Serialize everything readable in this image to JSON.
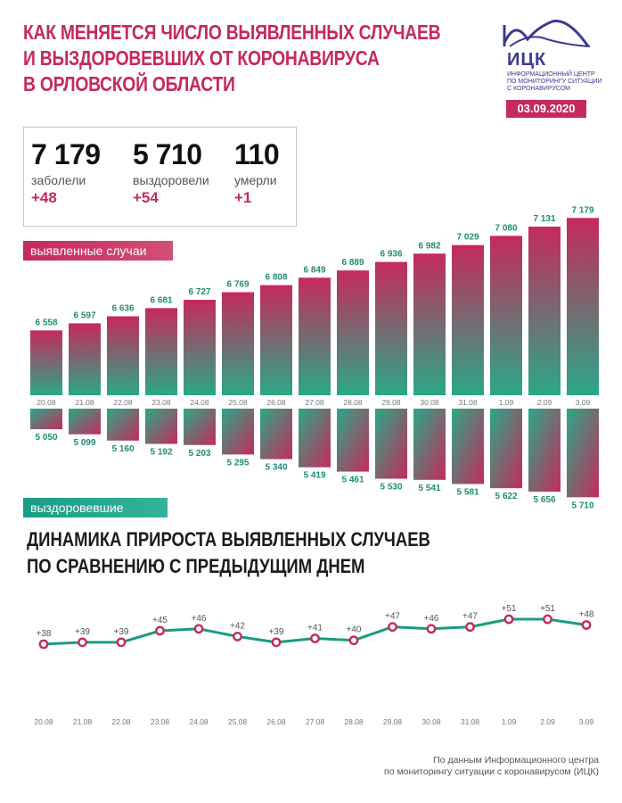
{
  "header": {
    "title_lines": [
      "КАК МЕНЯЕТСЯ ЧИСЛО ВЫЯВЛЕННЫХ СЛУЧАЕВ",
      "И ВЫЗДОРОВЕВШИХ ОТ КОРОНАВИРУСА",
      "В ОРЛОВСКОЙ ОБЛАСТИ"
    ]
  },
  "logo": {
    "abbr": "ИЦК",
    "sub_lines": [
      "ИНФОРМАЦИОННЫЙ ЦЕНТР",
      "ПО МОНИТОРИНГУ СИТУАЦИИ",
      "С КОРОНАВИРУСОМ"
    ],
    "date": "03.09.2020"
  },
  "summary": {
    "cases": {
      "value": "7 179",
      "label": "заболели",
      "delta": "+48"
    },
    "recovered": {
      "value": "5 710",
      "label": "выздоровели",
      "delta": "+54"
    },
    "deaths": {
      "value": "110",
      "label": "умерли",
      "delta": "+1"
    }
  },
  "labels": {
    "cases_pill": "выявленные случаи",
    "recovered_pill": "выздоровевшие"
  },
  "subtitle_lines": [
    "ДИНАМИКА ПРИРОСТА ВЫЯВЛЕННЫХ СЛУЧАЕВ",
    "ПО СРАВНЕНИЮ С ПРЕДЫДУЩИМ ДНЕМ"
  ],
  "source_lines": [
    "По данным Информационного центра",
    "по мониторингу ситуации с коронавирусом (ИЦК)"
  ],
  "colors": {
    "accent": "#c52a5c",
    "green": "#1a9c84",
    "label_green": "#1f8c75"
  },
  "chart_data": [
    {
      "type": "bar",
      "categories": [
        "20.08",
        "21.08",
        "22.08",
        "23.08",
        "24.08",
        "25.08",
        "26.08",
        "27.08",
        "28.08",
        "29.08",
        "30.08",
        "31.08",
        "1.09",
        "2.09",
        "3.09"
      ],
      "series": [
        {
          "name": "выявленные случаи",
          "values": [
            6558,
            6597,
            6636,
            6681,
            6727,
            6769,
            6808,
            6849,
            6889,
            6936,
            6982,
            7029,
            7080,
            7131,
            7179
          ],
          "labels": [
            "6 558",
            "6 597",
            "6 636",
            "6 681",
            "6 727",
            "6 769",
            "6 808",
            "6 849",
            "6 889",
            "6 936",
            "6 982",
            "7 029",
            "7 080",
            "7 131",
            "7 179"
          ]
        },
        {
          "name": "выздоровевшие",
          "values": [
            5050,
            5099,
            5160,
            5192,
            5203,
            5295,
            5340,
            5419,
            5461,
            5530,
            5541,
            5581,
            5622,
            5656,
            5710
          ],
          "labels": [
            "5 050",
            "5 099",
            "5 160",
            "5 192",
            "5 203",
            "5 295",
            "5 340",
            "5 419",
            "5 461",
            "5 530",
            "5 541",
            "5 581",
            "5 622",
            "5 656",
            "5 710"
          ]
        }
      ]
    },
    {
      "type": "line",
      "categories": [
        "20.08",
        "21.08",
        "22.08",
        "23.08",
        "24.08",
        "25.08",
        "26.08",
        "27.08",
        "28.08",
        "29.08",
        "30.08",
        "31.08",
        "1.09",
        "2.09",
        "3.09"
      ],
      "series": [
        {
          "values": [
            38,
            39,
            39,
            45,
            46,
            42,
            39,
            41,
            40,
            47,
            46,
            47,
            51,
            51,
            48
          ],
          "labels": [
            "+38",
            "+39",
            "+39",
            "+45",
            "+46",
            "+42",
            "+39",
            "+41",
            "+40",
            "+47",
            "+46",
            "+47",
            "+51",
            "+51",
            "+48"
          ]
        }
      ]
    }
  ]
}
